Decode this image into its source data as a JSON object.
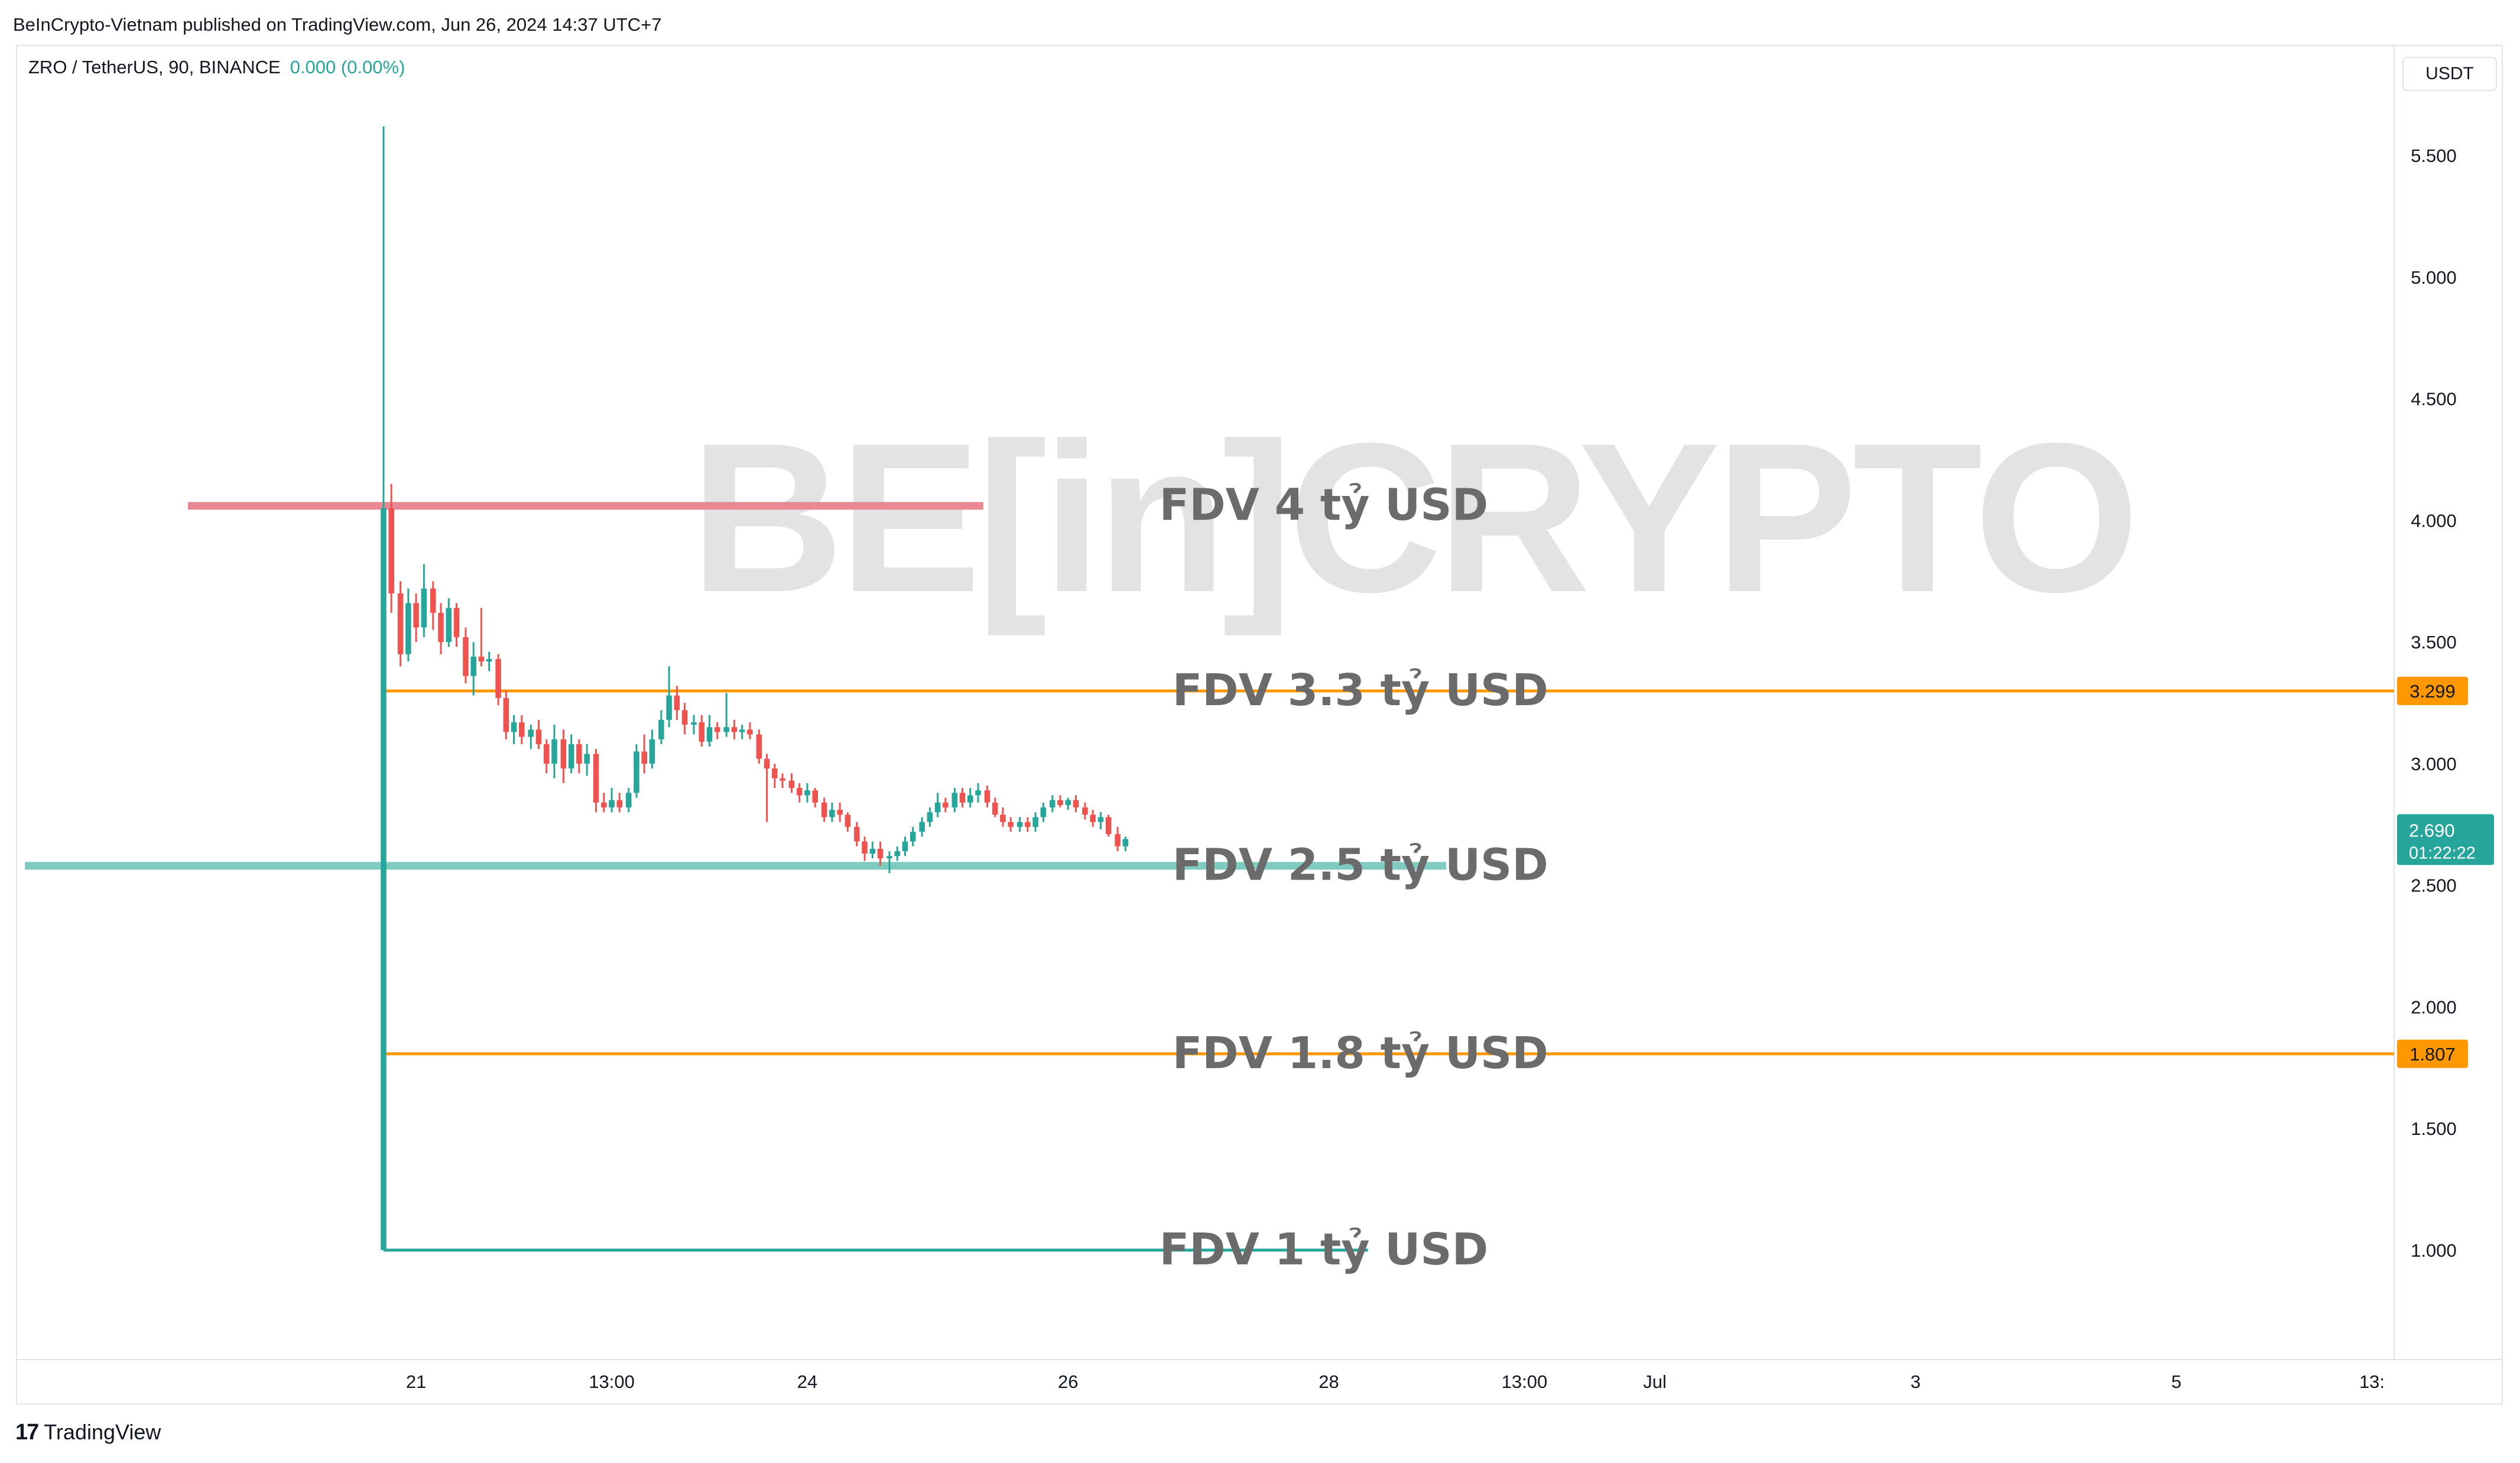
{
  "header": {
    "publisher": "BeInCrypto-Vietnam published on TradingView.com, Jun 26, 2024 14:37 UTC+7"
  },
  "symbol": {
    "title": "ZRO / TetherUS, 90, BINANCE",
    "change": "0.000 (0.00%)"
  },
  "currency": "USDT",
  "watermark": "BE[in]CRYPTO",
  "footer": {
    "logo": "17",
    "brand": "TradingView"
  },
  "colors": {
    "up": "#26a69a",
    "down": "#ef5350",
    "level_orange": "#ff9800",
    "level_red": "#e88892",
    "level_teal": "#7fcbbf",
    "annotation_text": "#6b6b6b",
    "watermark": "#e3e3e3"
  },
  "chart_data": {
    "type": "candlestick",
    "timeframe": "90",
    "y_axis": {
      "ylim": [
        0.55,
        5.95
      ],
      "ticks": [
        "5.500",
        "5.000",
        "4.500",
        "4.000",
        "3.500",
        "3.000",
        "2.500",
        "2.000",
        "1.500",
        "1.000"
      ],
      "tick_values": [
        5.5,
        5.0,
        4.5,
        4.0,
        3.5,
        3.0,
        2.5,
        2.0,
        1.5,
        1.0
      ]
    },
    "x_axis": {
      "labels": [
        "21",
        "13:00",
        "24",
        "26",
        "28",
        "13:00",
        "Jul",
        "3",
        "5",
        "13:"
      ],
      "label_days": [
        21.0,
        22.5,
        24.0,
        26.0,
        28.0,
        29.5,
        30.5,
        32.5,
        34.5,
        36.0
      ],
      "xlim": [
        17.94,
        36.17
      ],
      "notes": "x in days of June 2024 (Jul 1 = 31)"
    },
    "candles": [
      {
        "t": 20.75,
        "o": 1.0,
        "h": 5.62,
        "l": 1.0,
        "c": 4.05
      },
      {
        "t": 20.81,
        "o": 4.05,
        "h": 4.15,
        "l": 3.62,
        "c": 3.7
      },
      {
        "t": 20.88,
        "o": 3.7,
        "h": 3.75,
        "l": 3.4,
        "c": 3.45
      },
      {
        "t": 20.94,
        "o": 3.45,
        "h": 3.72,
        "l": 3.42,
        "c": 3.66
      },
      {
        "t": 21.0,
        "o": 3.66,
        "h": 3.7,
        "l": 3.5,
        "c": 3.56
      },
      {
        "t": 21.06,
        "o": 3.56,
        "h": 3.82,
        "l": 3.52,
        "c": 3.72
      },
      {
        "t": 21.13,
        "o": 3.72,
        "h": 3.75,
        "l": 3.55,
        "c": 3.62
      },
      {
        "t": 21.19,
        "o": 3.62,
        "h": 3.66,
        "l": 3.45,
        "c": 3.5
      },
      {
        "t": 21.25,
        "o": 3.5,
        "h": 3.68,
        "l": 3.48,
        "c": 3.64
      },
      {
        "t": 21.31,
        "o": 3.64,
        "h": 3.66,
        "l": 3.48,
        "c": 3.52
      },
      {
        "t": 21.38,
        "o": 3.52,
        "h": 3.56,
        "l": 3.33,
        "c": 3.36
      },
      {
        "t": 21.44,
        "o": 3.36,
        "h": 3.5,
        "l": 3.28,
        "c": 3.44
      },
      {
        "t": 21.5,
        "o": 3.44,
        "h": 3.64,
        "l": 3.4,
        "c": 3.42
      },
      {
        "t": 21.56,
        "o": 3.42,
        "h": 3.46,
        "l": 3.38,
        "c": 3.43
      },
      {
        "t": 21.63,
        "o": 3.43,
        "h": 3.45,
        "l": 3.24,
        "c": 3.27
      },
      {
        "t": 21.69,
        "o": 3.27,
        "h": 3.3,
        "l": 3.1,
        "c": 3.13
      },
      {
        "t": 21.75,
        "o": 3.13,
        "h": 3.2,
        "l": 3.08,
        "c": 3.17
      },
      {
        "t": 21.81,
        "o": 3.17,
        "h": 3.2,
        "l": 3.08,
        "c": 3.11
      },
      {
        "t": 21.88,
        "o": 3.11,
        "h": 3.16,
        "l": 3.06,
        "c": 3.14
      },
      {
        "t": 21.94,
        "o": 3.14,
        "h": 3.18,
        "l": 3.06,
        "c": 3.08
      },
      {
        "t": 22.0,
        "o": 3.08,
        "h": 3.1,
        "l": 2.96,
        "c": 3.0
      },
      {
        "t": 22.06,
        "o": 3.0,
        "h": 3.16,
        "l": 2.94,
        "c": 3.1
      },
      {
        "t": 22.13,
        "o": 3.1,
        "h": 3.14,
        "l": 2.92,
        "c": 2.98
      },
      {
        "t": 22.19,
        "o": 2.98,
        "h": 3.12,
        "l": 2.96,
        "c": 3.08
      },
      {
        "t": 22.25,
        "o": 3.08,
        "h": 3.1,
        "l": 2.96,
        "c": 3.0
      },
      {
        "t": 22.31,
        "o": 3.0,
        "h": 3.08,
        "l": 2.95,
        "c": 3.04
      },
      {
        "t": 22.38,
        "o": 3.04,
        "h": 3.06,
        "l": 2.8,
        "c": 2.84
      },
      {
        "t": 22.44,
        "o": 2.84,
        "h": 2.88,
        "l": 2.8,
        "c": 2.82
      },
      {
        "t": 22.5,
        "o": 2.82,
        "h": 2.9,
        "l": 2.8,
        "c": 2.85
      },
      {
        "t": 22.56,
        "o": 2.85,
        "h": 2.88,
        "l": 2.8,
        "c": 2.82
      },
      {
        "t": 22.63,
        "o": 2.82,
        "h": 2.9,
        "l": 2.8,
        "c": 2.88
      },
      {
        "t": 22.69,
        "o": 2.88,
        "h": 3.08,
        "l": 2.86,
        "c": 3.05
      },
      {
        "t": 22.75,
        "o": 3.05,
        "h": 3.12,
        "l": 2.96,
        "c": 3.0
      },
      {
        "t": 22.81,
        "o": 3.0,
        "h": 3.14,
        "l": 2.98,
        "c": 3.1
      },
      {
        "t": 22.88,
        "o": 3.1,
        "h": 3.22,
        "l": 3.08,
        "c": 3.18
      },
      {
        "t": 22.94,
        "o": 3.18,
        "h": 3.4,
        "l": 3.15,
        "c": 3.28
      },
      {
        "t": 23.0,
        "o": 3.28,
        "h": 3.32,
        "l": 3.18,
        "c": 3.22
      },
      {
        "t": 23.06,
        "o": 3.22,
        "h": 3.25,
        "l": 3.12,
        "c": 3.16
      },
      {
        "t": 23.13,
        "o": 3.16,
        "h": 3.2,
        "l": 3.12,
        "c": 3.17
      },
      {
        "t": 23.19,
        "o": 3.17,
        "h": 3.2,
        "l": 3.07,
        "c": 3.09
      },
      {
        "t": 23.25,
        "o": 3.09,
        "h": 3.2,
        "l": 3.07,
        "c": 3.15
      },
      {
        "t": 23.31,
        "o": 3.15,
        "h": 3.17,
        "l": 3.1,
        "c": 3.13
      },
      {
        "t": 23.38,
        "o": 3.13,
        "h": 3.29,
        "l": 3.11,
        "c": 3.15
      },
      {
        "t": 23.44,
        "o": 3.15,
        "h": 3.18,
        "l": 3.1,
        "c": 3.13
      },
      {
        "t": 23.5,
        "o": 3.13,
        "h": 3.16,
        "l": 3.1,
        "c": 3.14
      },
      {
        "t": 23.56,
        "o": 3.14,
        "h": 3.17,
        "l": 3.1,
        "c": 3.12
      },
      {
        "t": 23.63,
        "o": 3.12,
        "h": 3.14,
        "l": 3.0,
        "c": 3.02
      },
      {
        "t": 23.69,
        "o": 3.02,
        "h": 3.04,
        "l": 2.76,
        "c": 2.98
      },
      {
        "t": 23.75,
        "o": 2.98,
        "h": 3.0,
        "l": 2.9,
        "c": 2.94
      },
      {
        "t": 23.81,
        "o": 2.94,
        "h": 2.96,
        "l": 2.9,
        "c": 2.93
      },
      {
        "t": 23.88,
        "o": 2.93,
        "h": 2.96,
        "l": 2.88,
        "c": 2.9
      },
      {
        "t": 23.94,
        "o": 2.9,
        "h": 2.92,
        "l": 2.84,
        "c": 2.87
      },
      {
        "t": 24.0,
        "o": 2.87,
        "h": 2.92,
        "l": 2.84,
        "c": 2.89
      },
      {
        "t": 24.06,
        "o": 2.89,
        "h": 2.9,
        "l": 2.82,
        "c": 2.84
      },
      {
        "t": 24.13,
        "o": 2.84,
        "h": 2.86,
        "l": 2.76,
        "c": 2.78
      },
      {
        "t": 24.19,
        "o": 2.78,
        "h": 2.84,
        "l": 2.76,
        "c": 2.81
      },
      {
        "t": 24.25,
        "o": 2.81,
        "h": 2.84,
        "l": 2.76,
        "c": 2.79
      },
      {
        "t": 24.31,
        "o": 2.79,
        "h": 2.8,
        "l": 2.72,
        "c": 2.74
      },
      {
        "t": 24.38,
        "o": 2.74,
        "h": 2.76,
        "l": 2.66,
        "c": 2.68
      },
      {
        "t": 24.44,
        "o": 2.68,
        "h": 2.7,
        "l": 2.6,
        "c": 2.63
      },
      {
        "t": 24.5,
        "o": 2.63,
        "h": 2.68,
        "l": 2.61,
        "c": 2.65
      },
      {
        "t": 24.56,
        "o": 2.65,
        "h": 2.68,
        "l": 2.58,
        "c": 2.61
      },
      {
        "t": 24.63,
        "o": 2.61,
        "h": 2.64,
        "l": 2.55,
        "c": 2.62
      },
      {
        "t": 24.69,
        "o": 2.62,
        "h": 2.66,
        "l": 2.6,
        "c": 2.64
      },
      {
        "t": 24.75,
        "o": 2.64,
        "h": 2.7,
        "l": 2.62,
        "c": 2.68
      },
      {
        "t": 24.81,
        "o": 2.68,
        "h": 2.74,
        "l": 2.66,
        "c": 2.72
      },
      {
        "t": 24.88,
        "o": 2.72,
        "h": 2.78,
        "l": 2.7,
        "c": 2.76
      },
      {
        "t": 24.94,
        "o": 2.76,
        "h": 2.82,
        "l": 2.74,
        "c": 2.8
      },
      {
        "t": 25.0,
        "o": 2.8,
        "h": 2.88,
        "l": 2.78,
        "c": 2.84
      },
      {
        "t": 25.06,
        "o": 2.84,
        "h": 2.86,
        "l": 2.8,
        "c": 2.82
      },
      {
        "t": 25.13,
        "o": 2.82,
        "h": 2.9,
        "l": 2.8,
        "c": 2.88
      },
      {
        "t": 25.19,
        "o": 2.88,
        "h": 2.9,
        "l": 2.82,
        "c": 2.84
      },
      {
        "t": 25.25,
        "o": 2.84,
        "h": 2.9,
        "l": 2.82,
        "c": 2.87
      },
      {
        "t": 25.31,
        "o": 2.87,
        "h": 2.92,
        "l": 2.84,
        "c": 2.89
      },
      {
        "t": 25.38,
        "o": 2.89,
        "h": 2.91,
        "l": 2.82,
        "c": 2.84
      },
      {
        "t": 25.44,
        "o": 2.84,
        "h": 2.86,
        "l": 2.78,
        "c": 2.79
      },
      {
        "t": 25.5,
        "o": 2.79,
        "h": 2.82,
        "l": 2.74,
        "c": 2.76
      },
      {
        "t": 25.56,
        "o": 2.76,
        "h": 2.78,
        "l": 2.72,
        "c": 2.74
      },
      {
        "t": 25.63,
        "o": 2.74,
        "h": 2.78,
        "l": 2.72,
        "c": 2.76
      },
      {
        "t": 25.69,
        "o": 2.76,
        "h": 2.78,
        "l": 2.72,
        "c": 2.74
      },
      {
        "t": 25.75,
        "o": 2.74,
        "h": 2.8,
        "l": 2.72,
        "c": 2.78
      },
      {
        "t": 25.81,
        "o": 2.78,
        "h": 2.84,
        "l": 2.76,
        "c": 2.82
      },
      {
        "t": 25.88,
        "o": 2.82,
        "h": 2.87,
        "l": 2.8,
        "c": 2.85
      },
      {
        "t": 25.94,
        "o": 2.85,
        "h": 2.87,
        "l": 2.82,
        "c": 2.83
      },
      {
        "t": 26.0,
        "o": 2.83,
        "h": 2.86,
        "l": 2.81,
        "c": 2.85
      },
      {
        "t": 26.06,
        "o": 2.85,
        "h": 2.87,
        "l": 2.8,
        "c": 2.82
      },
      {
        "t": 26.13,
        "o": 2.82,
        "h": 2.84,
        "l": 2.77,
        "c": 2.79
      },
      {
        "t": 26.19,
        "o": 2.79,
        "h": 2.81,
        "l": 2.74,
        "c": 2.76
      },
      {
        "t": 26.25,
        "o": 2.76,
        "h": 2.8,
        "l": 2.73,
        "c": 2.78
      },
      {
        "t": 26.31,
        "o": 2.78,
        "h": 2.79,
        "l": 2.7,
        "c": 2.71
      },
      {
        "t": 26.38,
        "o": 2.71,
        "h": 2.74,
        "l": 2.64,
        "c": 2.66
      },
      {
        "t": 26.44,
        "o": 2.66,
        "h": 2.7,
        "l": 2.64,
        "c": 2.69
      }
    ],
    "levels": [
      {
        "name": "FDV 4 tỷ USD",
        "price": 4.06,
        "color": "#e88892",
        "style": "thick",
        "x_start": 19.25,
        "x_end": 25.35,
        "label_x": 26.7
      },
      {
        "name": "FDV 3.3 tỷ USD",
        "price": 3.299,
        "color": "#ff9800",
        "style": "thin",
        "x_start": 20.75,
        "x_end": 36.17,
        "label_x": 26.8,
        "price_label": "3.299"
      },
      {
        "name": "FDV 2.5 tỷ USD",
        "price": 2.58,
        "color": "#7fcbbf",
        "style": "thick",
        "x_start": 18.0,
        "x_end": 28.9,
        "label_x": 26.8
      },
      {
        "name": "FDV 1.8 tỷ USD",
        "price": 1.807,
        "color": "#ff9800",
        "style": "thin",
        "x_start": 20.75,
        "x_end": 36.17,
        "label_x": 26.8,
        "price_label": "1.807"
      },
      {
        "name": "FDV 1 tỷ USD",
        "price": 1.0,
        "color": "#26a69a",
        "style": "thin",
        "x_start": 20.75,
        "x_end": 28.3,
        "label_x": 26.7
      }
    ],
    "current_price": {
      "value": "2.690",
      "countdown": "01:22:22",
      "price": 2.69
    }
  }
}
